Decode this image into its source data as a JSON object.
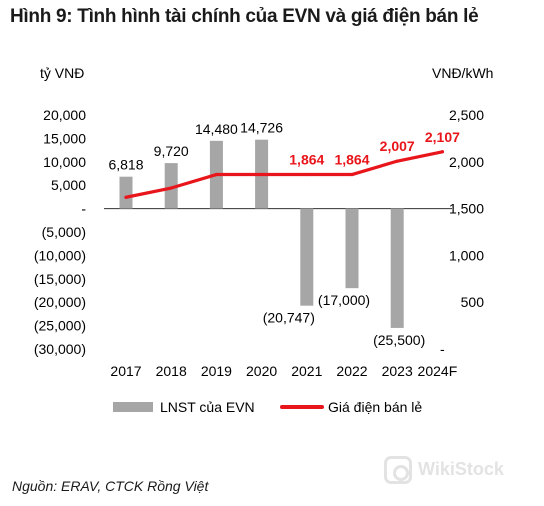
{
  "title": "Hình 9: Tình hình tài chính của EVN và giá điện bán lẻ",
  "source": "Nguồn: ERAV, CTCK Rồng Việt",
  "watermark": "WikiStock",
  "chart_data": {
    "type": "bar",
    "title": "Hình 9: Tình hình tài chính của EVN và giá điện bán lẻ",
    "categories": [
      "2017",
      "2018",
      "2019",
      "2020",
      "2021",
      "2022",
      "2023",
      "2024F"
    ],
    "y_left": {
      "unit": "tỷ VNĐ",
      "range": [
        -30000,
        20000
      ],
      "tick_values": [
        20000,
        15000,
        10000,
        5000,
        0,
        -5000,
        -10000,
        -15000,
        -20000,
        -25000,
        -30000
      ],
      "tick_labels": [
        "20,000",
        "15,000",
        "10,000",
        "5,000",
        "-",
        "(5,000)",
        "(10,000)",
        "(15,000)",
        "(20,000)",
        "(25,000)",
        "(30,000)"
      ]
    },
    "y_right": {
      "unit": "VNĐ/kWh",
      "range": [
        0,
        2500
      ],
      "tick_values": [
        2500,
        2000,
        1500,
        1000,
        500,
        0
      ],
      "tick_labels": [
        "2,500",
        "2,000",
        "1,500",
        "1,000",
        "500",
        "-"
      ]
    },
    "series": [
      {
        "name": "LNST của EVN",
        "type": "bar",
        "axis": "left",
        "color": "#a6a6a6",
        "values": [
          6818,
          9720,
          14480,
          14726,
          -20747,
          -17000,
          -25500,
          null
        ],
        "labels": [
          "6,818",
          "9,720",
          "14,480",
          "14,726",
          "(20,747)",
          "(17,000)",
          "(25,500)",
          ""
        ]
      },
      {
        "name": "Giá điện bán lẻ",
        "type": "line",
        "axis": "right",
        "color": "#e8151b",
        "values": [
          1621,
          1720,
          1864,
          1864,
          1864,
          1864,
          2007,
          2107
        ],
        "labels": [
          "",
          "",
          "",
          "",
          "1,864",
          "1,864",
          "2,007",
          "2,107"
        ]
      }
    ],
    "legend_position": "bottom",
    "grid": false
  }
}
